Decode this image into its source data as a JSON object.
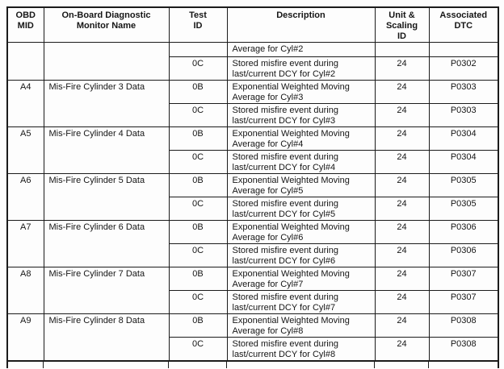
{
  "table": {
    "headers": {
      "obd_mid": [
        "OBD",
        "MID"
      ],
      "monitor_name": [
        "On-Board Diagnostic",
        "Monitor Name"
      ],
      "test_id": [
        "Test",
        "ID"
      ],
      "description": [
        "Description"
      ],
      "unit_scaling": [
        "Unit &",
        "Scaling",
        "ID"
      ],
      "dtc": [
        "Associated",
        "DTC"
      ]
    },
    "groups": [
      {
        "mid": "",
        "name": "",
        "rows": [
          {
            "test": "",
            "desc": "Average for Cyl#2",
            "unit": "",
            "dtc": ""
          },
          {
            "test": "0C",
            "desc": "Stored misfire event during last/current DCY for Cyl#2",
            "unit": "24",
            "dtc": "P0302"
          }
        ]
      },
      {
        "mid": "A4",
        "name": "Mis-Fire Cylinder 3 Data",
        "rows": [
          {
            "test": "0B",
            "desc": "Exponential Weighted Moving Average for Cyl#3",
            "unit": "24",
            "dtc": "P0303"
          },
          {
            "test": "0C",
            "desc": "Stored misfire event during last/current DCY for Cyl#3",
            "unit": "24",
            "dtc": "P0303"
          }
        ]
      },
      {
        "mid": "A5",
        "name": "Mis-Fire Cylinder 4 Data",
        "rows": [
          {
            "test": "0B",
            "desc": "Exponential Weighted Moving Average for Cyl#4",
            "unit": "24",
            "dtc": "P0304"
          },
          {
            "test": "0C",
            "desc": "Stored misfire event during last/current DCY for Cyl#4",
            "unit": "24",
            "dtc": "P0304"
          }
        ]
      },
      {
        "mid": "A6",
        "name": "Mis-Fire Cylinder 5 Data",
        "rows": [
          {
            "test": "0B",
            "desc": "Exponential Weighted Moving Average for Cyl#5",
            "unit": "24",
            "dtc": "P0305"
          },
          {
            "test": "0C",
            "desc": "Stored misfire event during last/current DCY for Cyl#5",
            "unit": "24",
            "dtc": "P0305"
          }
        ]
      },
      {
        "mid": "A7",
        "name": "Mis-Fire Cylinder 6 Data",
        "rows": [
          {
            "test": "0B",
            "desc": "Exponential Weighted Moving Average for Cyl#6",
            "unit": "24",
            "dtc": "P0306"
          },
          {
            "test": "0C",
            "desc": "Stored misfire event during last/current DCY for Cyl#6",
            "unit": "24",
            "dtc": "P0306"
          }
        ]
      },
      {
        "mid": "A8",
        "name": "Mis-Fire Cylinder 7 Data",
        "rows": [
          {
            "test": "0B",
            "desc": "Exponential Weighted Moving Average for Cyl#7",
            "unit": "24",
            "dtc": "P0307"
          },
          {
            "test": "0C",
            "desc": "Stored misfire event during last/current DCY for Cyl#7",
            "unit": "24",
            "dtc": "P0307"
          }
        ]
      },
      {
        "mid": "A9",
        "name": "Mis-Fire Cylinder 8 Data",
        "rows": [
          {
            "test": "0B",
            "desc": "Exponential Weighted Moving Average for Cyl#8",
            "unit": "24",
            "dtc": "P0308"
          },
          {
            "test": "0C",
            "desc": "Stored misfire event during last/current DCY for Cyl#8",
            "unit": "24",
            "dtc": "P0308"
          }
        ]
      }
    ]
  }
}
